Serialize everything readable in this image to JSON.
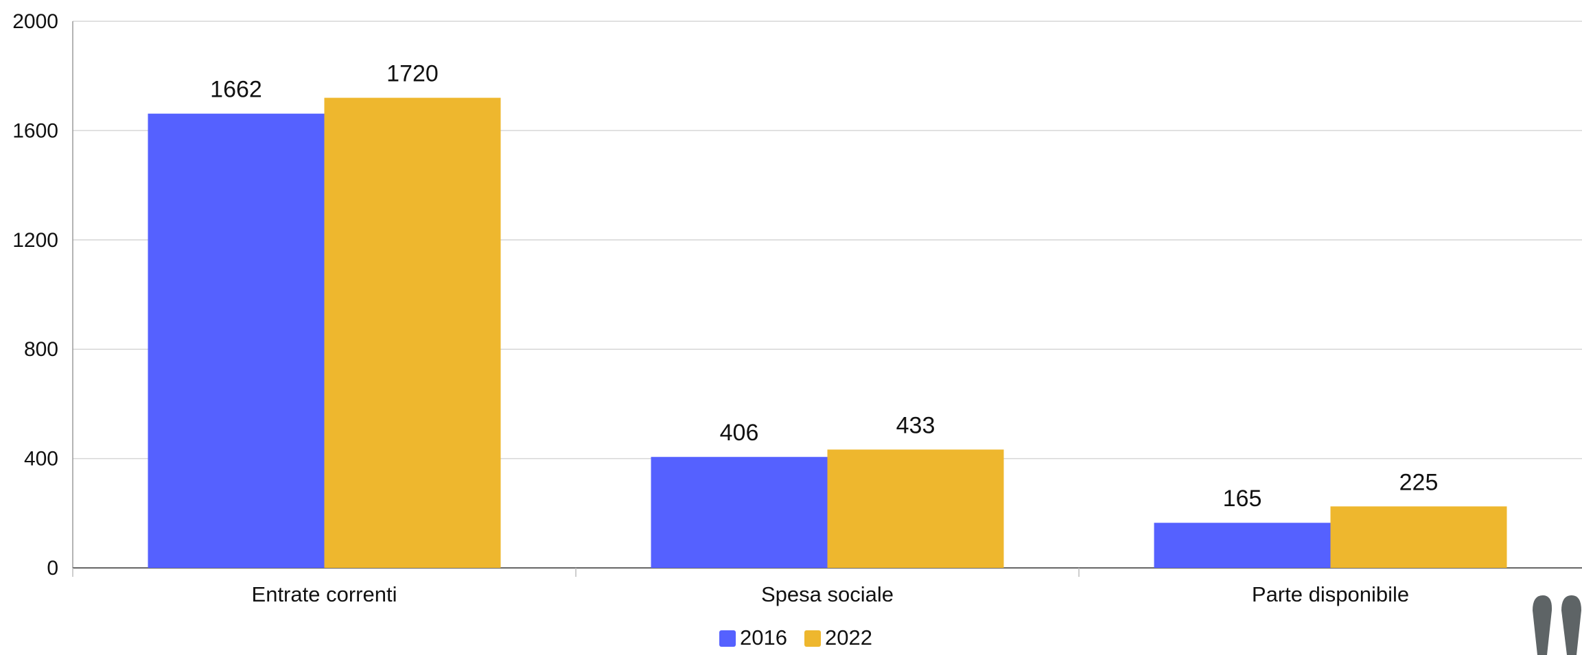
{
  "chart_data": {
    "type": "bar",
    "title": "",
    "xlabel": "",
    "ylabel": "",
    "categories": [
      "Entrate correnti",
      "Spesa sociale",
      "Parte disponibile"
    ],
    "series": [
      {
        "name": "2016",
        "values": [
          1662,
          406,
          165
        ],
        "color": "#5561FF"
      },
      {
        "name": "2022",
        "values": [
          1720,
          433,
          225
        ],
        "color": "#EEB72E"
      }
    ],
    "ylim": [
      0,
      2000
    ],
    "yticks": [
      0,
      400,
      800,
      1200,
      1600,
      2000
    ],
    "grid": true,
    "legend_position": "bottom-center",
    "data_labels": true
  }
}
